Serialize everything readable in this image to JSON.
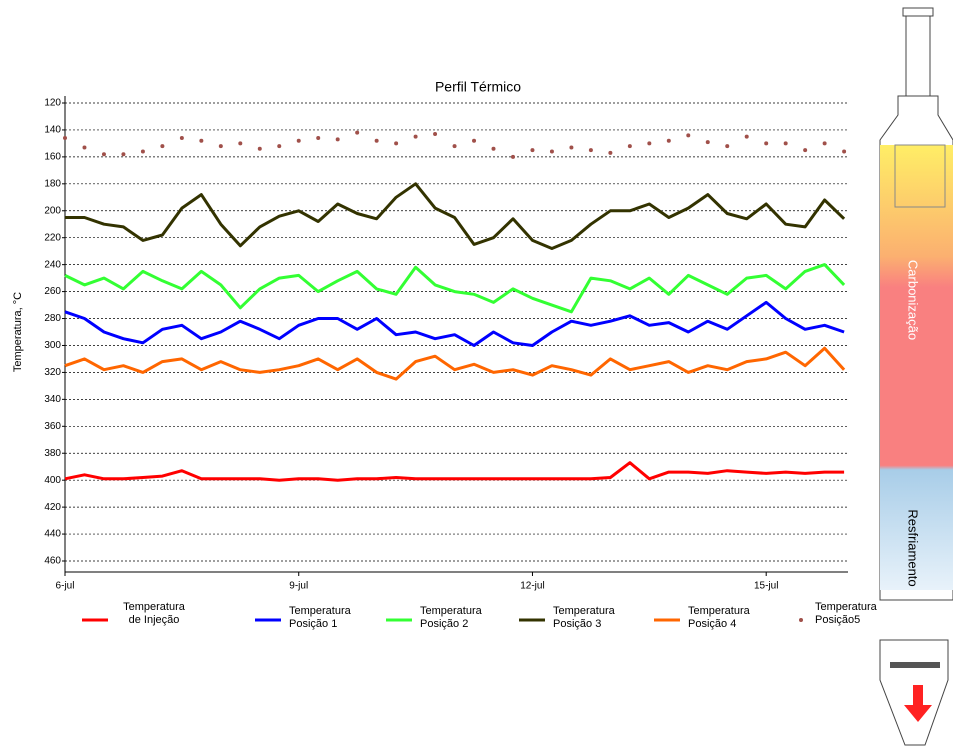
{
  "chart_data": {
    "type": "line",
    "title": "Perfil Térmico",
    "y_label": "Temperatura, °C",
    "x": [
      6,
      6.25,
      6.5,
      6.75,
      7,
      7.25,
      7.5,
      7.75,
      8,
      8.25,
      8.5,
      8.75,
      9,
      9.25,
      9.5,
      9.75,
      10,
      10.25,
      10.5,
      10.75,
      11,
      11.25,
      11.5,
      11.75,
      12,
      12.25,
      12.5,
      12.75,
      13,
      13.25,
      13.5,
      13.75,
      14,
      14.25,
      14.5,
      14.75,
      15,
      15.25,
      15.5,
      15.75,
      16
    ],
    "xlim": [
      6,
      16.05
    ],
    "xticks": [
      {
        "value": 6,
        "label": "6-jul"
      },
      {
        "value": 9,
        "label": "9-jul"
      },
      {
        "value": 12,
        "label": "12-jul"
      },
      {
        "value": 15,
        "label": "15-jul"
      }
    ],
    "ylim": [
      460,
      120
    ],
    "yticks": [
      120,
      140,
      160,
      180,
      200,
      220,
      240,
      260,
      280,
      300,
      320,
      340,
      360,
      380,
      400,
      420,
      440,
      460
    ],
    "grid": true,
    "legend": "bottom",
    "series": [
      {
        "name": "Temperatura de Injeção",
        "color": "#ff0000",
        "marker": "line",
        "values": [
          399,
          396,
          399,
          399,
          398,
          397,
          393,
          399,
          399,
          399,
          399,
          400,
          399,
          399,
          400,
          399,
          399,
          398,
          399,
          399,
          399,
          399,
          399,
          399,
          399,
          399,
          399,
          399,
          398,
          387,
          399,
          394,
          394,
          395,
          393,
          394,
          395,
          394,
          395,
          394,
          394
        ]
      },
      {
        "name": "Temperatura Posição 1",
        "color": "#0000ff",
        "marker": "line",
        "values": [
          275,
          280,
          290,
          295,
          298,
          288,
          285,
          295,
          290,
          282,
          288,
          295,
          285,
          280,
          280,
          288,
          280,
          292,
          290,
          295,
          292,
          300,
          290,
          298,
          300,
          290,
          282,
          285,
          282,
          278,
          285,
          283,
          290,
          282,
          288,
          278,
          268,
          280,
          288,
          285,
          290
        ]
      },
      {
        "name": "Temperatura Posição 2",
        "color": "#33ff33",
        "marker": "line",
        "values": [
          248,
          255,
          250,
          258,
          245,
          252,
          258,
          245,
          255,
          272,
          258,
          250,
          248,
          260,
          252,
          245,
          258,
          262,
          242,
          255,
          260,
          262,
          268,
          258,
          265,
          270,
          275,
          250,
          252,
          258,
          250,
          262,
          248,
          255,
          262,
          250,
          248,
          258,
          245,
          240,
          255
        ]
      },
      {
        "name": "Temperatura Posição 3",
        "color": "#333300",
        "marker": "line",
        "values": [
          205,
          205,
          210,
          212,
          222,
          218,
          198,
          188,
          210,
          226,
          212,
          204,
          200,
          208,
          195,
          202,
          206,
          190,
          180,
          198,
          205,
          225,
          220,
          206,
          222,
          228,
          222,
          210,
          200,
          200,
          195,
          205,
          198,
          188,
          202,
          206,
          195,
          210,
          212,
          192,
          206
        ]
      },
      {
        "name": "Temperatura Posição 4",
        "color": "#ff6600",
        "marker": "line",
        "values": [
          315,
          310,
          318,
          315,
          320,
          312,
          310,
          318,
          312,
          318,
          320,
          318,
          315,
          310,
          318,
          310,
          320,
          325,
          312,
          308,
          318,
          314,
          320,
          318,
          322,
          315,
          318,
          322,
          310,
          318,
          315,
          312,
          320,
          315,
          318,
          312,
          310,
          305,
          315,
          302,
          318
        ]
      },
      {
        "name": "Temperatura Posição5",
        "color": "#a0504a",
        "marker": "dots",
        "values": [
          146,
          153,
          158,
          158,
          156,
          152,
          146,
          148,
          152,
          150,
          154,
          152,
          148,
          146,
          147,
          142,
          148,
          150,
          145,
          143,
          152,
          148,
          154,
          160,
          155,
          156,
          153,
          155,
          157,
          152,
          150,
          148,
          144,
          149,
          152,
          145,
          150,
          150,
          155,
          150,
          156
        ]
      }
    ]
  },
  "side_diagram": {
    "upper_zone": "Carbonização",
    "lower_zone": "Resfriamento"
  }
}
